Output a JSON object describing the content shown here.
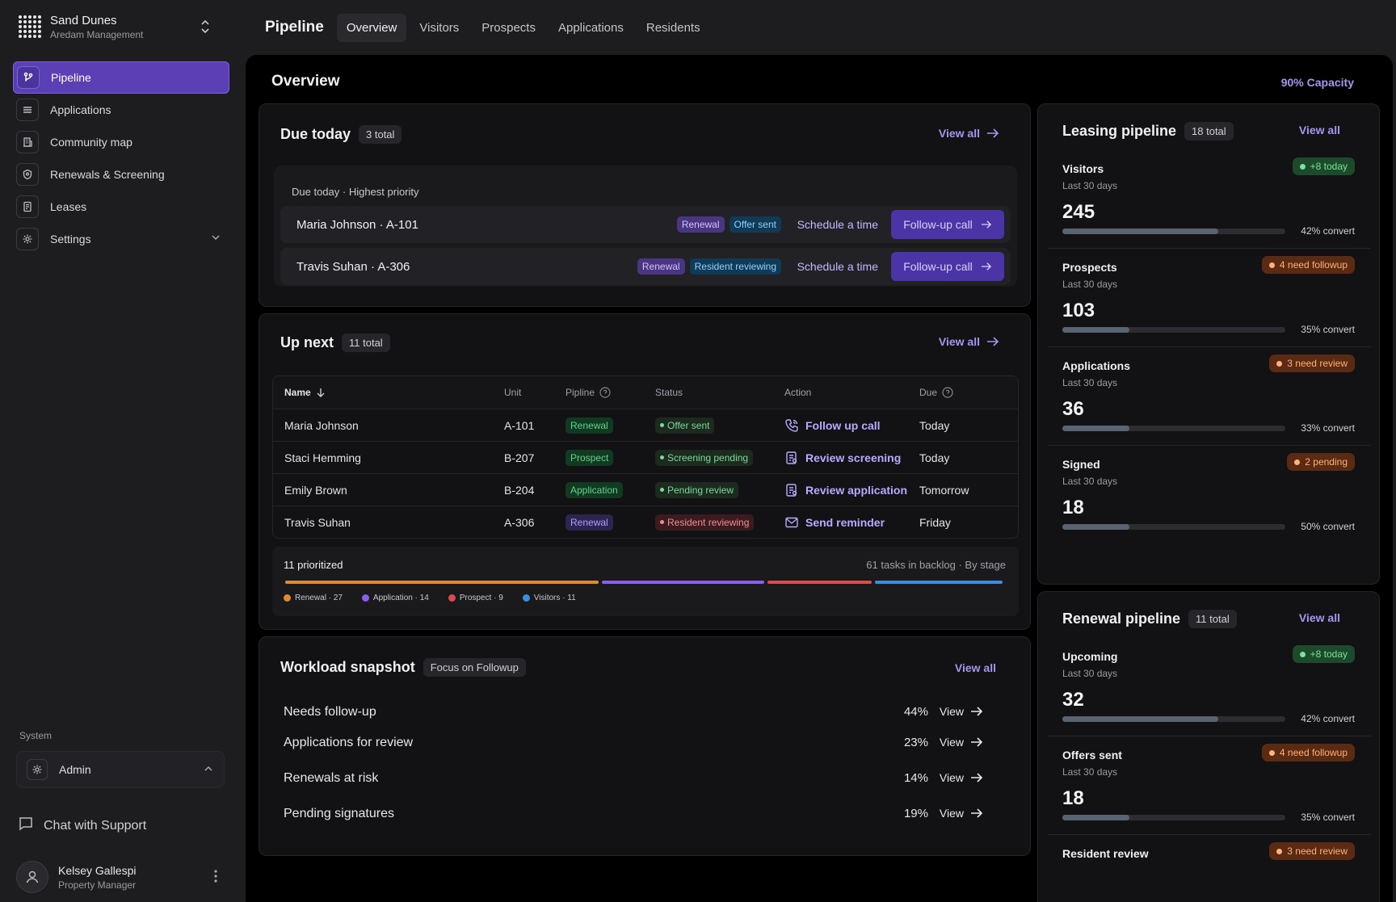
{
  "org": {
    "name": "Sand Dunes",
    "sub": "Aredam Management"
  },
  "nav": [
    {
      "label": "Pipeline",
      "icon": "branch-icon"
    },
    {
      "label": "Applications",
      "icon": "list-icon"
    },
    {
      "label": "Community map",
      "icon": "building-icon"
    },
    {
      "label": "Renewals & Screening",
      "icon": "shield-icon"
    },
    {
      "label": "Leases",
      "icon": "document-icon"
    },
    {
      "label": "Settings",
      "icon": "gear-icon"
    }
  ],
  "system": {
    "label": "System",
    "admin": "Admin"
  },
  "support": "Chat with Support",
  "user": {
    "name": "Kelsey Gallespi",
    "role": "Property Manager"
  },
  "topbar": {
    "title": "Pipeline",
    "tabs": [
      "Overview",
      "Visitors",
      "Prospects",
      "Applications",
      "Residents"
    ]
  },
  "main": {
    "title": "Overview",
    "capacity": "90% Capacity"
  },
  "due_today": {
    "title": "Due today",
    "count": "3 total",
    "view_all": "View all",
    "subtitle": "Due today · Highest priority",
    "rows": [
      {
        "name": "Maria Johnson · A-101",
        "tags": [
          "Renewal",
          "Offer sent"
        ],
        "schedule": "Schedule a time",
        "action": "Follow-up call"
      },
      {
        "name": "Travis Suhan · A-306",
        "tags": [
          "Renewal",
          "Resident reviewing"
        ],
        "schedule": "Schedule a time",
        "action": "Follow-up call"
      }
    ]
  },
  "up_next": {
    "title": "Up next",
    "count": "11 total",
    "view_all": "View all",
    "columns": [
      "Name",
      "Unit",
      "Pipline",
      "Status",
      "Action",
      "Due"
    ],
    "rows": [
      {
        "name": "Maria Johnson",
        "unit": "A-101",
        "pipeline": "Renewal",
        "status": "Offer sent",
        "action": "Follow up call",
        "due": "Today"
      },
      {
        "name": "Staci Hemming",
        "unit": "B-207",
        "pipeline": "Prospect",
        "status": "Screening pending",
        "action": "Review screening",
        "due": "Today"
      },
      {
        "name": "Emily Brown",
        "unit": "B-204",
        "pipeline": "Application",
        "status": "Pending review",
        "action": "Review application",
        "due": "Tomorrow"
      },
      {
        "name": "Travis Suhan",
        "unit": "A-306",
        "pipeline": "Renewal",
        "status": "Resident reviewing",
        "action": "Send reminder",
        "due": "Friday"
      }
    ],
    "prioritized": "11 prioritized",
    "backlog": "61 tasks in backlog · By stage",
    "stages": [
      {
        "label": "Renewal · 27",
        "value": 27,
        "color": "#e08a2c"
      },
      {
        "label": "Application · 14",
        "value": 14,
        "color": "#8a5cf0"
      },
      {
        "label": "Prospect · 9",
        "value": 9,
        "color": "#e04a4a"
      },
      {
        "label": "Visitors · 11",
        "value": 11,
        "color": "#3a8fe0"
      }
    ]
  },
  "workload": {
    "title": "Workload snapshot",
    "focus": "Focus on Followup",
    "view_all": "View all",
    "view_label": "View",
    "rows": [
      {
        "label": "Needs follow-up",
        "pct": "44%"
      },
      {
        "label": "Applications for review",
        "pct": "23%"
      },
      {
        "label": "Renewals at risk",
        "pct": "14%"
      },
      {
        "label": "Pending signatures",
        "pct": "19%"
      }
    ]
  },
  "leasing": {
    "title": "Leasing pipeline",
    "count": "18 total",
    "view_all": "View all",
    "metrics": [
      {
        "name": "Visitors",
        "sub": "Last 30 days",
        "value": "245",
        "badge": "+8 today",
        "badge_type": "green",
        "fill": 0.7,
        "convert": "42% convert"
      },
      {
        "name": "Prospects",
        "sub": "Last 30 days",
        "value": "103",
        "badge": "4 need followup",
        "badge_type": "orange",
        "fill": 0.3,
        "convert": "35% convert"
      },
      {
        "name": "Applications",
        "sub": "Last 30 days",
        "value": "36",
        "badge": "3 need review",
        "badge_type": "orange",
        "fill": 0.3,
        "convert": "33% convert"
      },
      {
        "name": "Signed",
        "sub": "Last 30 days",
        "value": "18",
        "badge": "2 pending",
        "badge_type": "orange",
        "fill": 0.3,
        "convert": "50% convert"
      }
    ]
  },
  "renewal": {
    "title": "Renewal pipeline",
    "count": "11 total",
    "view_all": "View all",
    "metrics": [
      {
        "name": "Upcoming",
        "sub": "Last 30 days",
        "value": "32",
        "badge": "+8 today",
        "badge_type": "green",
        "fill": 0.7,
        "convert": "42% convert"
      },
      {
        "name": "Offers sent",
        "sub": "Last 30 days",
        "value": "18",
        "badge": "4 need followup",
        "badge_type": "orange",
        "fill": 0.3,
        "convert": "35% convert"
      },
      {
        "name": "Resident review",
        "badge": "3 need review",
        "badge_type": "orange"
      }
    ]
  }
}
